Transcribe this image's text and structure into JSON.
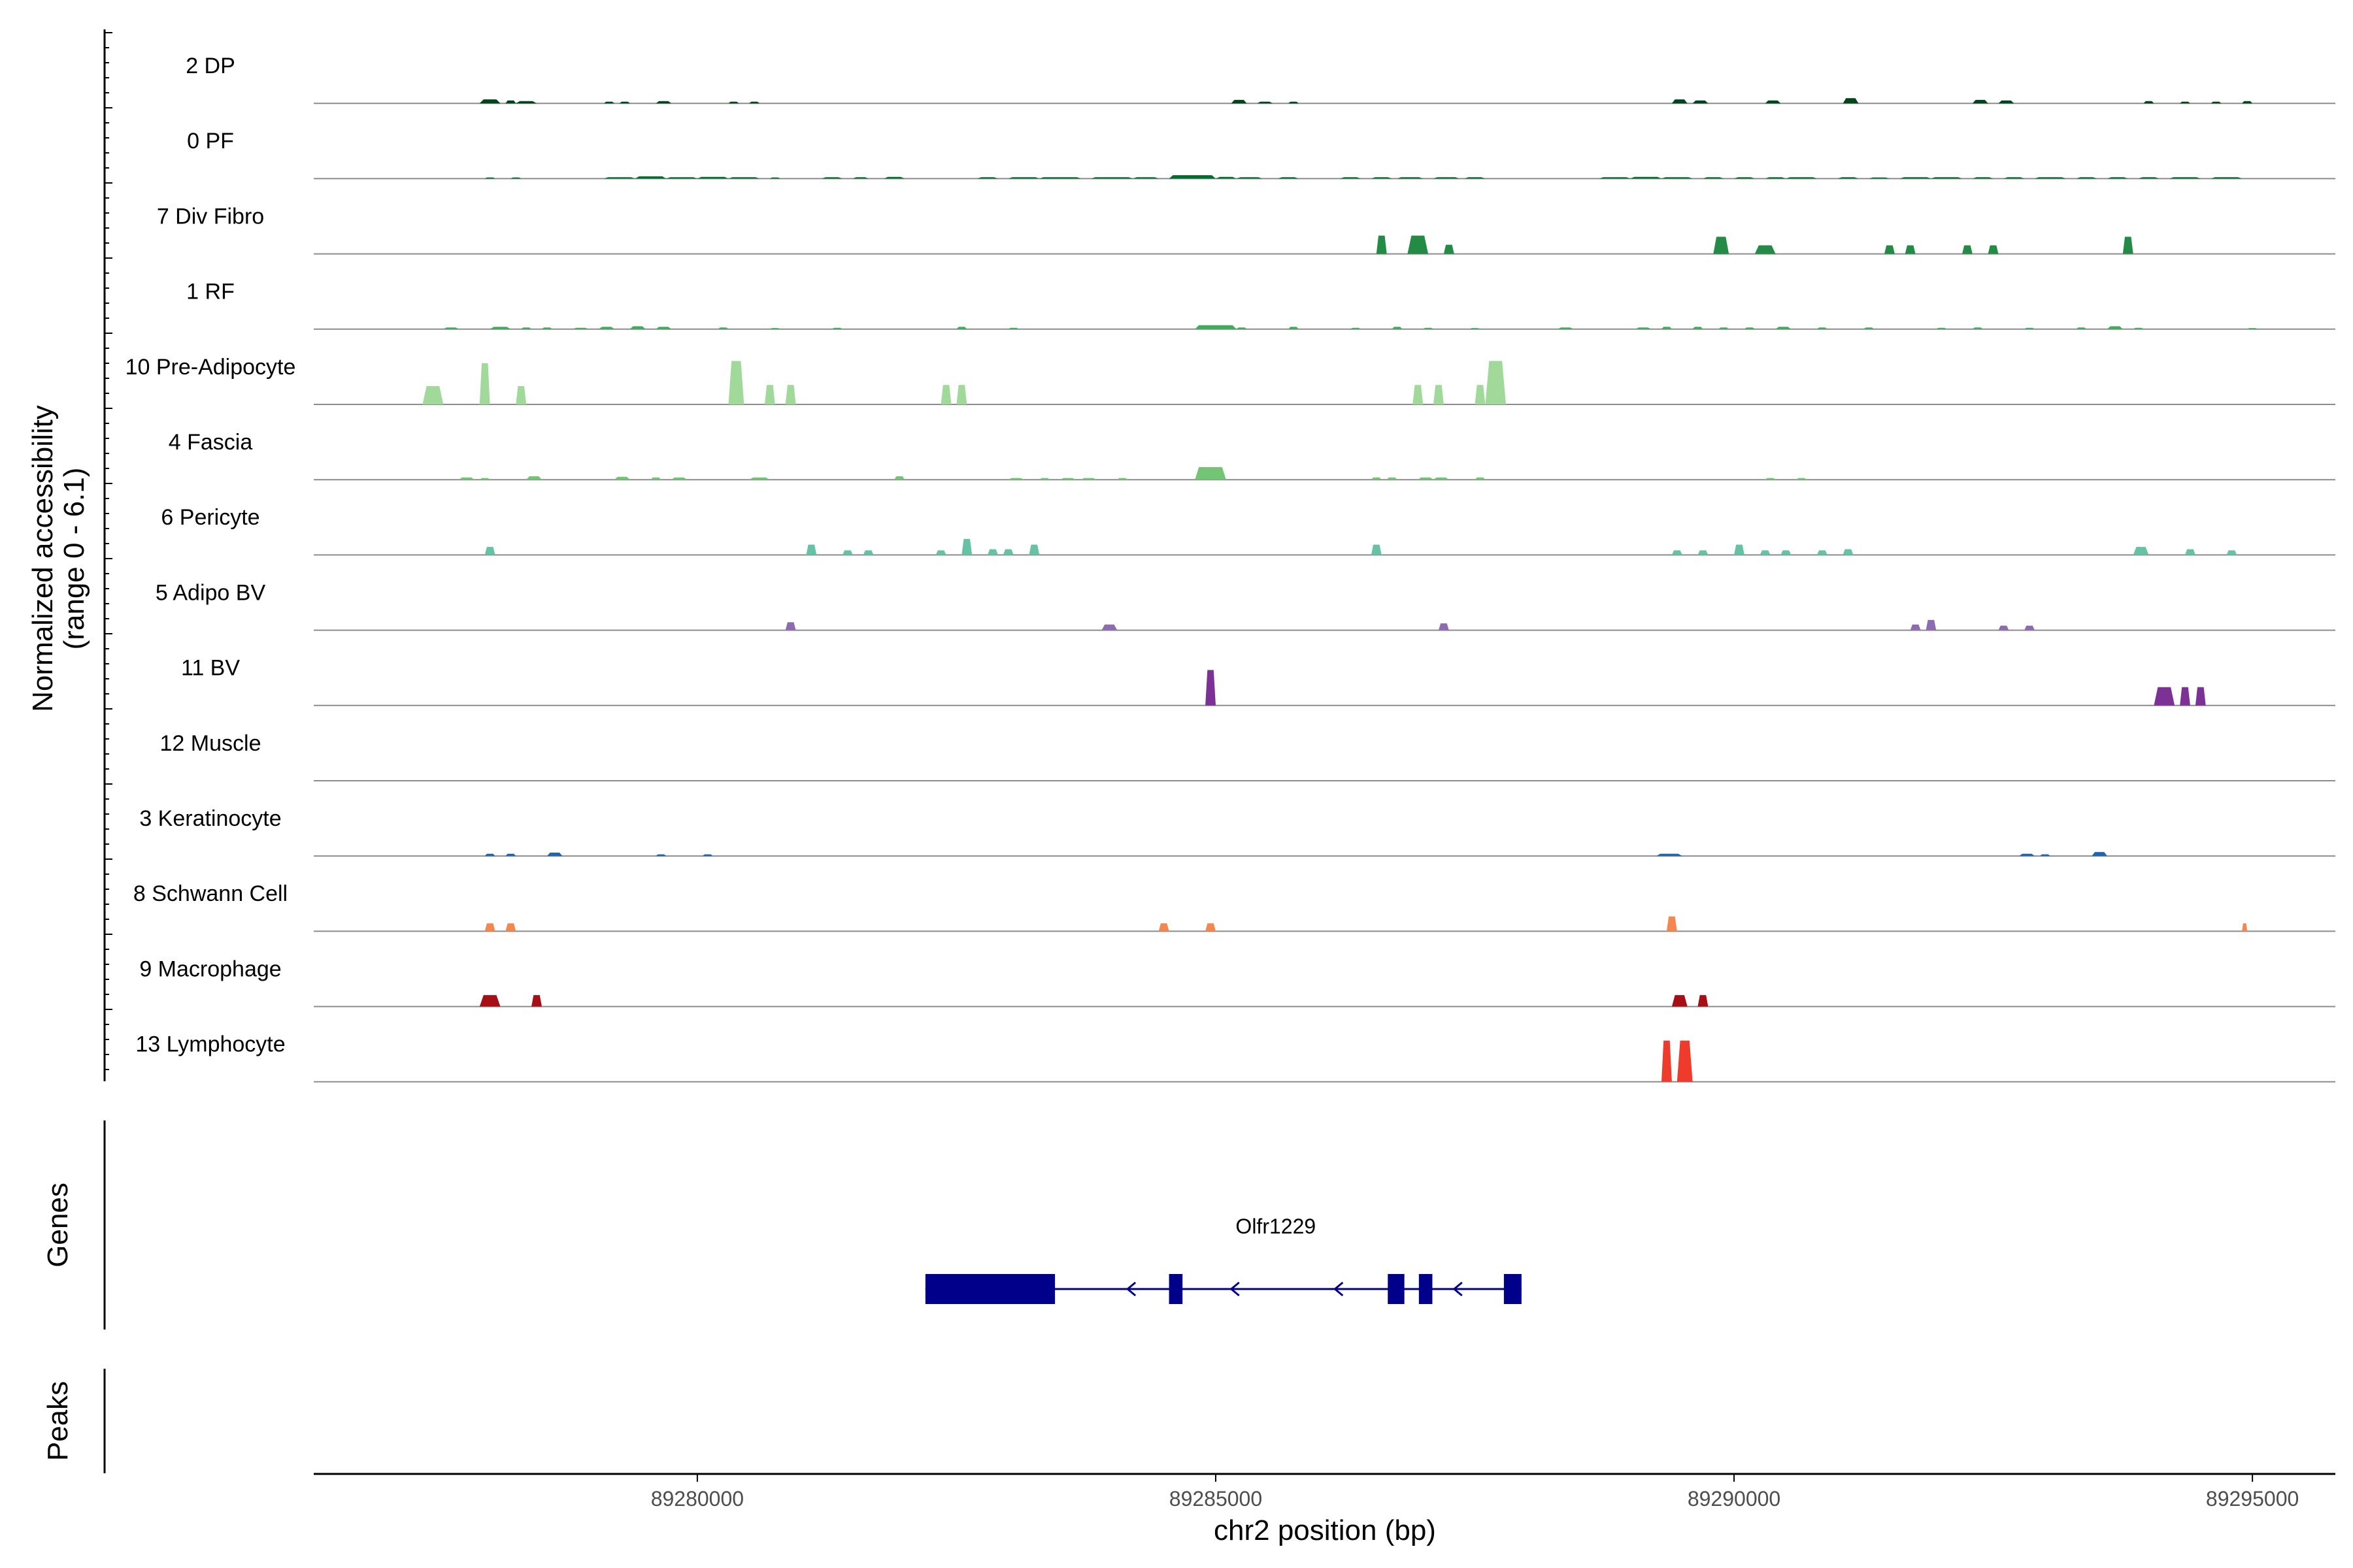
{
  "chart_data": {
    "type": "area",
    "title": "",
    "ylabel_line1": "Normalized accessibility",
    "ylabel_line2": "(range 0 - 6.1)",
    "xlabel": "chr2 position (bp)",
    "xlim": [
      89276300,
      89295800
    ],
    "x_ticks": [
      "89280000",
      "89285000",
      "89290000",
      "89295000"
    ],
    "y_range": [
      0,
      6.1
    ],
    "genes_panel_label": "Genes",
    "peaks_panel_label": "Peaks",
    "gene": {
      "name": "Olfr1229",
      "strand": "-",
      "start": 89282200,
      "end": 89287950,
      "exons": [
        [
          89282200,
          89283450
        ],
        [
          89284550,
          89284680
        ],
        [
          89286660,
          89286820
        ],
        [
          89286960,
          89287090
        ],
        [
          89287780,
          89287950
        ]
      ],
      "color": "#00008B"
    },
    "series": [
      {
        "name": "2 DP",
        "color": "#00441B",
        "peaks": [
          [
            89277900,
            89278100,
            0.35
          ],
          [
            89278150,
            89278250,
            0.25
          ],
          [
            89278250,
            89278450,
            0.2
          ],
          [
            89279100,
            89279200,
            0.15
          ],
          [
            89279250,
            89279350,
            0.15
          ],
          [
            89279600,
            89279750,
            0.2
          ],
          [
            89280300,
            89280400,
            0.15
          ],
          [
            89280500,
            89280600,
            0.15
          ],
          [
            89285150,
            89285300,
            0.3
          ],
          [
            89285400,
            89285550,
            0.15
          ],
          [
            89285700,
            89285800,
            0.15
          ],
          [
            89289400,
            89289550,
            0.35
          ],
          [
            89289600,
            89289750,
            0.25
          ],
          [
            89290300,
            89290450,
            0.25
          ],
          [
            89291050,
            89291200,
            0.45
          ],
          [
            89292300,
            89292450,
            0.3
          ],
          [
            89292550,
            89292700,
            0.25
          ],
          [
            89293950,
            89294050,
            0.2
          ],
          [
            89294300,
            89294400,
            0.15
          ],
          [
            89294600,
            89294700,
            0.15
          ],
          [
            89294900,
            89295000,
            0.2
          ]
        ]
      },
      {
        "name": "0 PF",
        "color": "#006D2C",
        "peaks": [
          [
            89277950,
            89278050,
            0.1
          ],
          [
            89278200,
            89278300,
            0.1
          ],
          [
            89279100,
            89279400,
            0.12
          ],
          [
            89279400,
            89279700,
            0.2
          ],
          [
            89279700,
            89280000,
            0.12
          ],
          [
            89280000,
            89280300,
            0.15
          ],
          [
            89280300,
            89280600,
            0.12
          ],
          [
            89280700,
            89280800,
            0.1
          ],
          [
            89281200,
            89281400,
            0.12
          ],
          [
            89281500,
            89281650,
            0.12
          ],
          [
            89281800,
            89282000,
            0.15
          ],
          [
            89282700,
            89282900,
            0.12
          ],
          [
            89283000,
            89283300,
            0.12
          ],
          [
            89283300,
            89283700,
            0.12
          ],
          [
            89283800,
            89284200,
            0.12
          ],
          [
            89284200,
            89284450,
            0.12
          ],
          [
            89284550,
            89285000,
            0.3
          ],
          [
            89285000,
            89285200,
            0.15
          ],
          [
            89285200,
            89285450,
            0.12
          ],
          [
            89285600,
            89285800,
            0.12
          ],
          [
            89286200,
            89286400,
            0.12
          ],
          [
            89286500,
            89286700,
            0.12
          ],
          [
            89286750,
            89287000,
            0.12
          ],
          [
            89287100,
            89287350,
            0.12
          ],
          [
            89287400,
            89287600,
            0.12
          ],
          [
            89288700,
            89289000,
            0.12
          ],
          [
            89289000,
            89289300,
            0.15
          ],
          [
            89289300,
            89289600,
            0.12
          ],
          [
            89289700,
            89289900,
            0.12
          ],
          [
            89290000,
            89290200,
            0.12
          ],
          [
            89290300,
            89290500,
            0.12
          ],
          [
            89290500,
            89290800,
            0.12
          ],
          [
            89291000,
            89291200,
            0.12
          ],
          [
            89291300,
            89291500,
            0.1
          ],
          [
            89291600,
            89291900,
            0.12
          ],
          [
            89291900,
            89292200,
            0.12
          ],
          [
            89292300,
            89292500,
            0.12
          ],
          [
            89292600,
            89292800,
            0.12
          ],
          [
            89292900,
            89293200,
            0.12
          ],
          [
            89293300,
            89293500,
            0.12
          ],
          [
            89293600,
            89293800,
            0.12
          ],
          [
            89293900,
            89294100,
            0.12
          ],
          [
            89294200,
            89294500,
            0.12
          ],
          [
            89294600,
            89294900,
            0.12
          ]
        ]
      },
      {
        "name": "7 Div Fibro",
        "color": "#238B45",
        "peaks": [
          [
            89286550,
            89286650,
            1.6
          ],
          [
            89286850,
            89287050,
            1.6
          ],
          [
            89287200,
            89287300,
            0.8
          ],
          [
            89289800,
            89289950,
            1.5
          ],
          [
            89290200,
            89290400,
            0.75
          ],
          [
            89291450,
            89291550,
            0.75
          ],
          [
            89291650,
            89291750,
            0.75
          ],
          [
            89292200,
            89292300,
            0.75
          ],
          [
            89292450,
            89292550,
            0.75
          ],
          [
            89293750,
            89293850,
            1.5
          ]
        ]
      },
      {
        "name": "1 RF",
        "color": "#41AB5D",
        "peaks": [
          [
            89277550,
            89277700,
            0.15
          ],
          [
            89278000,
            89278200,
            0.2
          ],
          [
            89278300,
            89278400,
            0.15
          ],
          [
            89278500,
            89278600,
            0.15
          ],
          [
            89278800,
            89278950,
            0.12
          ],
          [
            89279050,
            89279200,
            0.2
          ],
          [
            89279350,
            89279500,
            0.25
          ],
          [
            89279600,
            89279750,
            0.2
          ],
          [
            89280200,
            89280300,
            0.15
          ],
          [
            89280700,
            89280800,
            0.1
          ],
          [
            89281300,
            89281400,
            0.12
          ],
          [
            89282500,
            89282600,
            0.2
          ],
          [
            89283000,
            89283100,
            0.12
          ],
          [
            89284800,
            89285200,
            0.35
          ],
          [
            89285200,
            89285300,
            0.15
          ],
          [
            89285700,
            89285800,
            0.2
          ],
          [
            89286300,
            89286400,
            0.12
          ],
          [
            89286700,
            89286800,
            0.2
          ],
          [
            89287000,
            89287100,
            0.12
          ],
          [
            89287450,
            89287550,
            0.1
          ],
          [
            89288300,
            89288450,
            0.15
          ],
          [
            89289050,
            89289200,
            0.15
          ],
          [
            89289300,
            89289400,
            0.2
          ],
          [
            89289600,
            89289700,
            0.2
          ],
          [
            89289850,
            89289950,
            0.15
          ],
          [
            89290100,
            89290200,
            0.15
          ],
          [
            89290400,
            89290550,
            0.2
          ],
          [
            89290800,
            89290900,
            0.15
          ],
          [
            89291250,
            89291350,
            0.15
          ],
          [
            89291950,
            89292050,
            0.12
          ],
          [
            89292300,
            89292400,
            0.15
          ],
          [
            89292800,
            89292900,
            0.12
          ],
          [
            89293300,
            89293400,
            0.15
          ],
          [
            89293600,
            89293750,
            0.25
          ],
          [
            89293850,
            89293950,
            0.12
          ],
          [
            89294950,
            89295050,
            0.1
          ]
        ]
      },
      {
        "name": "10 Pre-Adipocyte",
        "color": "#A1D99B",
        "peaks": [
          [
            89277350,
            89277550,
            1.6
          ],
          [
            89277900,
            89278000,
            3.6
          ],
          [
            89278250,
            89278350,
            1.6
          ],
          [
            89280300,
            89280450,
            3.8
          ],
          [
            89280650,
            89280750,
            1.7
          ],
          [
            89280850,
            89280950,
            1.7
          ],
          [
            89282350,
            89282450,
            1.7
          ],
          [
            89282500,
            89282600,
            1.7
          ],
          [
            89286900,
            89287000,
            1.7
          ],
          [
            89287100,
            89287200,
            1.7
          ],
          [
            89287500,
            89287600,
            1.7
          ],
          [
            89287600,
            89287800,
            3.8
          ]
        ]
      },
      {
        "name": "4 Fascia",
        "color": "#74C476",
        "peaks": [
          [
            89277700,
            89277850,
            0.2
          ],
          [
            89277900,
            89278000,
            0.15
          ],
          [
            89278350,
            89278500,
            0.3
          ],
          [
            89279200,
            89279350,
            0.25
          ],
          [
            89279550,
            89279650,
            0.2
          ],
          [
            89279750,
            89279900,
            0.2
          ],
          [
            89280500,
            89280700,
            0.2
          ],
          [
            89281900,
            89282000,
            0.3
          ],
          [
            89283000,
            89283150,
            0.15
          ],
          [
            89283300,
            89283400,
            0.15
          ],
          [
            89283500,
            89283650,
            0.15
          ],
          [
            89283700,
            89283850,
            0.15
          ],
          [
            89284050,
            89284150,
            0.15
          ],
          [
            89284800,
            89285100,
            1.1
          ],
          [
            89286500,
            89286600,
            0.2
          ],
          [
            89286650,
            89286750,
            0.2
          ],
          [
            89286950,
            89287100,
            0.2
          ],
          [
            89287100,
            89287250,
            0.2
          ],
          [
            89287500,
            89287600,
            0.2
          ],
          [
            89290300,
            89290400,
            0.15
          ],
          [
            89290600,
            89290700,
            0.15
          ]
        ]
      },
      {
        "name": "6 Pericyte",
        "color": "#66C2A4",
        "peaks": [
          [
            89277950,
            89278050,
            0.7
          ],
          [
            89281050,
            89281150,
            0.9
          ],
          [
            89281400,
            89281500,
            0.4
          ],
          [
            89281600,
            89281700,
            0.4
          ],
          [
            89282300,
            89282400,
            0.4
          ],
          [
            89282550,
            89282650,
            1.4
          ],
          [
            89282800,
            89282900,
            0.5
          ],
          [
            89282950,
            89283050,
            0.5
          ],
          [
            89283200,
            89283300,
            0.9
          ],
          [
            89286500,
            89286600,
            0.9
          ],
          [
            89289400,
            89289500,
            0.4
          ],
          [
            89289650,
            89289750,
            0.4
          ],
          [
            89290000,
            89290100,
            0.9
          ],
          [
            89290250,
            89290350,
            0.4
          ],
          [
            89290450,
            89290550,
            0.4
          ],
          [
            89290800,
            89290900,
            0.4
          ],
          [
            89291050,
            89291150,
            0.5
          ],
          [
            89293850,
            89294000,
            0.7
          ],
          [
            89294350,
            89294450,
            0.5
          ],
          [
            89294750,
            89294850,
            0.4
          ]
        ]
      },
      {
        "name": "5 Adipo BV",
        "color": "#8C6BB1",
        "peaks": [
          [
            89280850,
            89280950,
            0.7
          ],
          [
            89283900,
            89284050,
            0.5
          ],
          [
            89287150,
            89287250,
            0.6
          ],
          [
            89291700,
            89291800,
            0.5
          ],
          [
            89291850,
            89291950,
            0.9
          ],
          [
            89292550,
            89292650,
            0.4
          ],
          [
            89292800,
            89292900,
            0.4
          ]
        ]
      },
      {
        "name": "11 BV",
        "color": "#7B3294",
        "peaks": [
          [
            89284900,
            89285000,
            3.1
          ],
          [
            89294050,
            89294250,
            1.6
          ],
          [
            89294300,
            89294400,
            1.6
          ],
          [
            89294450,
            89294550,
            1.6
          ]
        ]
      },
      {
        "name": "12 Muscle",
        "color": "#6A51A3",
        "peaks": []
      },
      {
        "name": "3 Keratinocyte",
        "color": "#2166AC",
        "peaks": [
          [
            89277950,
            89278050,
            0.2
          ],
          [
            89278150,
            89278250,
            0.2
          ],
          [
            89278550,
            89278700,
            0.3
          ],
          [
            89279600,
            89279700,
            0.15
          ],
          [
            89280050,
            89280150,
            0.15
          ],
          [
            89289250,
            89289500,
            0.2
          ],
          [
            89292750,
            89292900,
            0.2
          ],
          [
            89292950,
            89293050,
            0.15
          ],
          [
            89293450,
            89293600,
            0.35
          ]
        ]
      },
      {
        "name": "8 Schwann Cell",
        "color": "#F4874F",
        "peaks": [
          [
            89277950,
            89278050,
            0.7
          ],
          [
            89278150,
            89278250,
            0.7
          ],
          [
            89284450,
            89284550,
            0.7
          ],
          [
            89284900,
            89285000,
            0.7
          ],
          [
            89289350,
            89289450,
            1.3
          ],
          [
            89294900,
            89294950,
            0.7
          ]
        ]
      },
      {
        "name": "9 Macrophage",
        "color": "#A50F15",
        "peaks": [
          [
            89277900,
            89278100,
            1.0
          ],
          [
            89278400,
            89278500,
            1.0
          ],
          [
            89289400,
            89289550,
            1.0
          ],
          [
            89289650,
            89289750,
            1.0
          ]
        ]
      },
      {
        "name": "13 Lymphocyte",
        "color": "#EF3B2C",
        "peaks": [
          [
            89289300,
            89289400,
            3.6
          ],
          [
            89289450,
            89289600,
            3.6
          ]
        ]
      }
    ]
  }
}
